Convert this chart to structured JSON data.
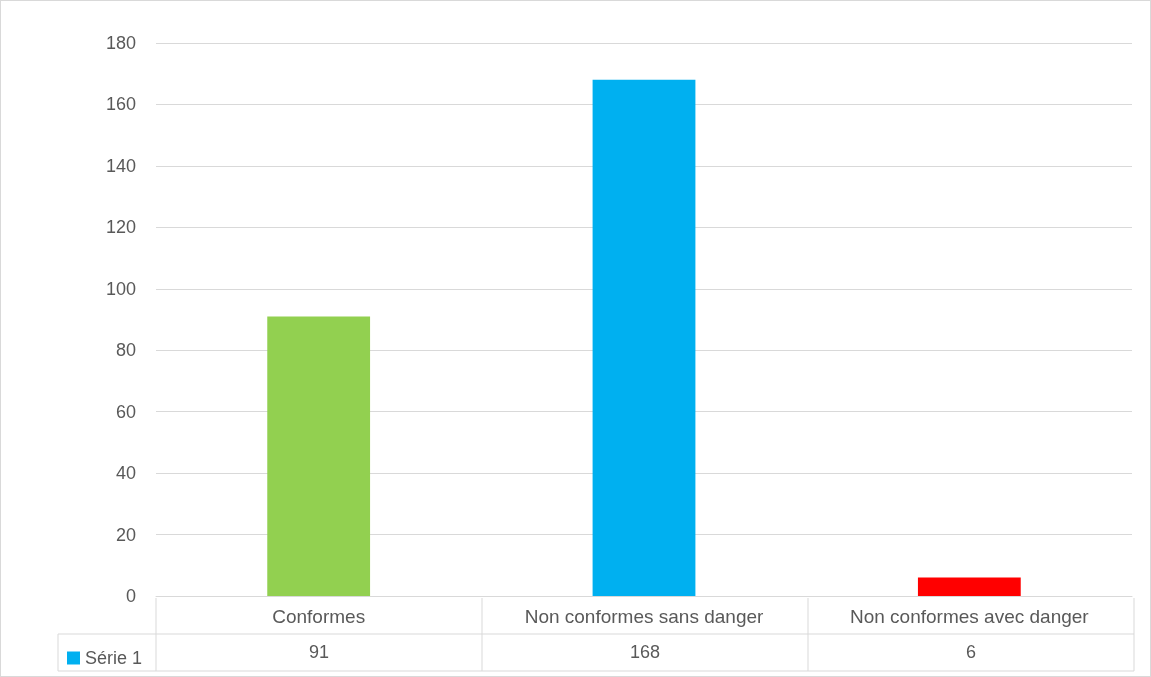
{
  "chart_data": {
    "type": "bar",
    "categories": [
      "Conformes",
      "Non conformes sans danger",
      "Non conformes avec danger"
    ],
    "series": [
      {
        "name": "Série 1",
        "color": "#00b0f0",
        "colors": [
          "#92d050",
          "#00b0f0",
          "#ff0000"
        ],
        "values": [
          91,
          168,
          6
        ]
      }
    ],
    "ylim": [
      0,
      180
    ],
    "yticks": [
      0,
      20,
      40,
      60,
      80,
      100,
      120,
      140,
      160,
      180
    ],
    "grid": "y",
    "legend": "bottom left",
    "data_labels": true
  }
}
